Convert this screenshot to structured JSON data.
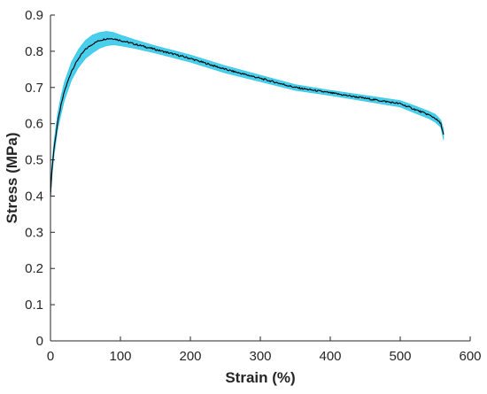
{
  "chart_data": {
    "type": "line",
    "title": "",
    "xlabel": "Strain (%)",
    "ylabel": "Stress (MPa)",
    "xlim": [
      0,
      600
    ],
    "ylim": [
      0,
      0.9
    ],
    "xticks": [
      "0",
      "100",
      "200",
      "300",
      "400",
      "500",
      "600"
    ],
    "yticks": [
      "0",
      "0.1",
      "0.2",
      "0.3",
      "0.4",
      "0.5",
      "0.6",
      "0.7",
      "0.8",
      "0.9"
    ],
    "grid": false,
    "series": [
      {
        "kind": "mean",
        "color": "#000000",
        "x": [
          0,
          2,
          5,
          10,
          15,
          20,
          30,
          40,
          50,
          60,
          70,
          80,
          90,
          100,
          120,
          150,
          200,
          250,
          300,
          350,
          400,
          450,
          500,
          520,
          540,
          550,
          558,
          562
        ],
        "y": [
          0.4,
          0.47,
          0.53,
          0.6,
          0.65,
          0.69,
          0.745,
          0.78,
          0.805,
          0.82,
          0.83,
          0.835,
          0.835,
          0.83,
          0.82,
          0.805,
          0.78,
          0.75,
          0.725,
          0.7,
          0.685,
          0.67,
          0.655,
          0.64,
          0.625,
          0.615,
          0.6,
          0.57
        ]
      },
      {
        "kind": "band",
        "color": "#29c5e8",
        "x": [
          0,
          2,
          5,
          10,
          15,
          20,
          30,
          40,
          50,
          60,
          70,
          80,
          90,
          100,
          120,
          150,
          200,
          250,
          300,
          350,
          400,
          450,
          500,
          520,
          540,
          550,
          558,
          562
        ],
        "upper": [
          0.41,
          0.49,
          0.55,
          0.625,
          0.675,
          0.715,
          0.77,
          0.805,
          0.83,
          0.845,
          0.852,
          0.855,
          0.852,
          0.845,
          0.832,
          0.815,
          0.79,
          0.76,
          0.734,
          0.708,
          0.692,
          0.678,
          0.664,
          0.65,
          0.635,
          0.626,
          0.61,
          0.585
        ],
        "lower": [
          0.39,
          0.45,
          0.51,
          0.58,
          0.625,
          0.665,
          0.72,
          0.755,
          0.78,
          0.795,
          0.808,
          0.815,
          0.818,
          0.815,
          0.808,
          0.795,
          0.77,
          0.74,
          0.716,
          0.692,
          0.678,
          0.662,
          0.646,
          0.63,
          0.615,
          0.604,
          0.59,
          0.555
        ]
      }
    ]
  }
}
